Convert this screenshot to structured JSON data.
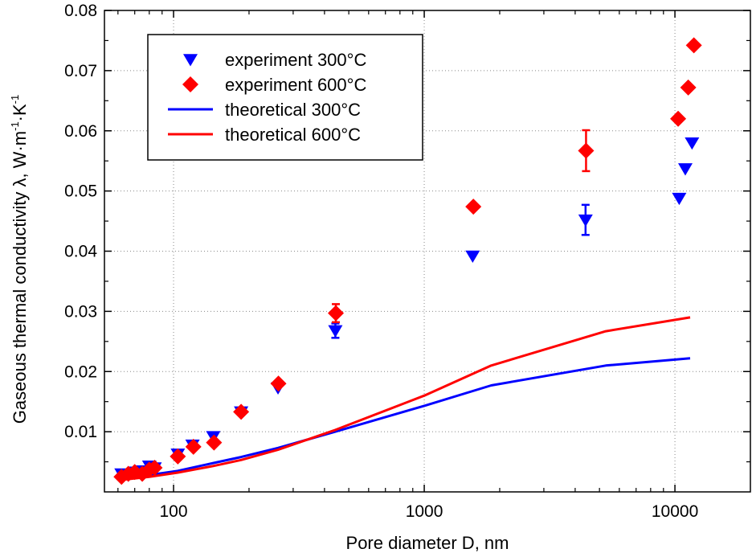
{
  "chart_data": {
    "type": "scatter",
    "xlabel": "Pore diameter D, nm",
    "ylabel": {
      "main": "Gaseous thermal conductivity λ, W·m",
      "exp1": "-1",
      "mid": "·K",
      "exp2": "-1"
    },
    "x_scale": "log",
    "xlim": [
      53,
      20000
    ],
    "ylim": [
      0.0,
      0.08
    ],
    "x_ticks": [
      100,
      1000,
      10000
    ],
    "x_tick_labels": [
      "100",
      "1000",
      "10000"
    ],
    "y_ticks": [
      0.01,
      0.02,
      0.03,
      0.04,
      0.05,
      0.06,
      0.07,
      0.08
    ],
    "y_tick_labels": [
      "0.01",
      "0.02",
      "0.03",
      "0.04",
      "0.05",
      "0.06",
      "0.07",
      "0.08"
    ],
    "grid": true,
    "legend_position": "top-left",
    "series": [
      {
        "name": "experiment 300°C",
        "kind": "marker",
        "marker": "triangle-down",
        "color": "#0000ff",
        "points": [
          {
            "x": 62,
            "y": 0.003
          },
          {
            "x": 66,
            "y": 0.0028
          },
          {
            "x": 70,
            "y": 0.0033
          },
          {
            "x": 75,
            "y": 0.0035
          },
          {
            "x": 80,
            "y": 0.0043
          },
          {
            "x": 84,
            "y": 0.004
          },
          {
            "x": 104,
            "y": 0.0063
          },
          {
            "x": 119,
            "y": 0.0078
          },
          {
            "x": 144,
            "y": 0.0092
          },
          {
            "x": 186,
            "y": 0.0133
          },
          {
            "x": 261,
            "y": 0.0173
          },
          {
            "x": 442,
            "y": 0.0268,
            "err": 0.0012
          },
          {
            "x": 1560,
            "y": 0.0392
          },
          {
            "x": 4400,
            "y": 0.0452,
            "err": 0.0025
          },
          {
            "x": 10400,
            "y": 0.0488
          },
          {
            "x": 11000,
            "y": 0.0537
          },
          {
            "x": 11700,
            "y": 0.058
          }
        ]
      },
      {
        "name": "experiment 600°C",
        "kind": "marker",
        "marker": "diamond",
        "color": "#ff0000",
        "points": [
          {
            "x": 62,
            "y": 0.0025
          },
          {
            "x": 66,
            "y": 0.003
          },
          {
            "x": 70,
            "y": 0.0033
          },
          {
            "x": 75,
            "y": 0.003
          },
          {
            "x": 80,
            "y": 0.0037
          },
          {
            "x": 84,
            "y": 0.004
          },
          {
            "x": 104,
            "y": 0.0059
          },
          {
            "x": 120,
            "y": 0.0075
          },
          {
            "x": 145,
            "y": 0.0082
          },
          {
            "x": 186,
            "y": 0.0133
          },
          {
            "x": 262,
            "y": 0.018
          },
          {
            "x": 444,
            "y": 0.0297,
            "err": 0.0015
          },
          {
            "x": 1570,
            "y": 0.0474
          },
          {
            "x": 4420,
            "y": 0.0567,
            "err": 0.0034
          },
          {
            "x": 10300,
            "y": 0.062
          },
          {
            "x": 11300,
            "y": 0.0672
          },
          {
            "x": 11900,
            "y": 0.0742
          }
        ]
      },
      {
        "name": "theoretical 300°C",
        "kind": "line",
        "color": "#0000ff",
        "points": [
          {
            "x": 62,
            "y": 0.0023
          },
          {
            "x": 80,
            "y": 0.0028
          },
          {
            "x": 104,
            "y": 0.0035
          },
          {
            "x": 144,
            "y": 0.0048
          },
          {
            "x": 186,
            "y": 0.0058
          },
          {
            "x": 261,
            "y": 0.0073
          },
          {
            "x": 442,
            "y": 0.01
          },
          {
            "x": 1000,
            "y": 0.0143
          },
          {
            "x": 1850,
            "y": 0.0177
          },
          {
            "x": 5300,
            "y": 0.021
          },
          {
            "x": 11500,
            "y": 0.0222
          }
        ]
      },
      {
        "name": "theoretical 600°C",
        "kind": "line",
        "color": "#ff0000",
        "points": [
          {
            "x": 62,
            "y": 0.002
          },
          {
            "x": 80,
            "y": 0.0025
          },
          {
            "x": 104,
            "y": 0.0032
          },
          {
            "x": 144,
            "y": 0.0043
          },
          {
            "x": 186,
            "y": 0.0053
          },
          {
            "x": 261,
            "y": 0.007
          },
          {
            "x": 442,
            "y": 0.0103
          },
          {
            "x": 1000,
            "y": 0.016
          },
          {
            "x": 1850,
            "y": 0.021
          },
          {
            "x": 5300,
            "y": 0.0267
          },
          {
            "x": 11500,
            "y": 0.029
          }
        ]
      }
    ]
  }
}
